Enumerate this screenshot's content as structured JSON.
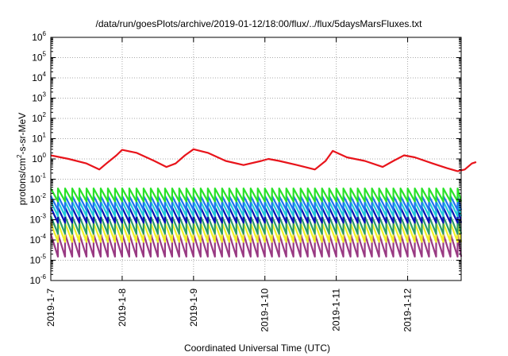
{
  "chart_data": {
    "type": "line",
    "title": "/data/run/goesPlots/archive/2019-01-12/18:00/flux/../flux/5daysMarsFluxes.txt",
    "xlabel": "Coordinated Universal Time (UTC)",
    "ylabel": {
      "prefix": "protons/cm",
      "sup": "2",
      "suffix": "-s-sr-MeV"
    },
    "yscale": "log",
    "ylim_exp": [
      -6,
      6
    ],
    "y_ticks": [
      {
        "base": "10",
        "exp": "-6"
      },
      {
        "base": "10",
        "exp": "-5"
      },
      {
        "base": "10",
        "exp": "-4"
      },
      {
        "base": "10",
        "exp": "-3"
      },
      {
        "base": "10",
        "exp": "-2"
      },
      {
        "base": "10",
        "exp": "-1"
      },
      {
        "base": "10",
        "exp": "0"
      },
      {
        "base": "10",
        "exp": "1"
      },
      {
        "base": "10",
        "exp": "2"
      },
      {
        "base": "10",
        "exp": "3"
      },
      {
        "base": "10",
        "exp": "4"
      },
      {
        "base": "10",
        "exp": "5"
      },
      {
        "base": "10",
        "exp": "6"
      }
    ],
    "x_range_days": [
      "2019-01-07",
      "2019-01-12 18:00"
    ],
    "x_ticks": [
      "2019-1-7",
      "2019-1-8",
      "2019-1-9",
      "2019-1-10",
      "2019-1-11",
      "2019-1-12"
    ],
    "grid": true,
    "legend": "none",
    "series": [
      {
        "color": "#e8141b",
        "kind": "smooth",
        "points": [
          [
            0.0,
            1.5
          ],
          [
            0.25,
            1.0
          ],
          [
            0.5,
            0.6
          ],
          [
            0.68,
            0.3
          ],
          [
            0.78,
            0.6
          ],
          [
            0.92,
            1.5
          ],
          [
            1.0,
            2.8
          ],
          [
            1.2,
            2.0
          ],
          [
            1.45,
            0.8
          ],
          [
            1.62,
            0.4
          ],
          [
            1.75,
            0.6
          ],
          [
            1.88,
            1.5
          ],
          [
            2.0,
            3.0
          ],
          [
            2.2,
            2.0
          ],
          [
            2.45,
            0.8
          ],
          [
            2.7,
            0.5
          ],
          [
            2.95,
            0.8
          ],
          [
            3.05,
            1.0
          ],
          [
            3.2,
            0.8
          ],
          [
            3.45,
            0.5
          ],
          [
            3.7,
            0.3
          ],
          [
            3.85,
            0.8
          ],
          [
            3.95,
            2.5
          ],
          [
            4.15,
            1.2
          ],
          [
            4.4,
            0.8
          ],
          [
            4.65,
            0.4
          ],
          [
            4.8,
            0.8
          ],
          [
            4.95,
            1.5
          ],
          [
            5.1,
            1.2
          ],
          [
            5.35,
            0.6
          ],
          [
            5.55,
            0.35
          ],
          [
            5.7,
            0.25
          ],
          [
            5.8,
            0.3
          ],
          [
            5.9,
            0.6
          ],
          [
            5.96,
            0.7
          ]
        ]
      },
      {
        "color": "#29e229",
        "kind": "sawtooth",
        "high": 0.035,
        "low": 0.008,
        "period": 0.1
      },
      {
        "color": "#1f72f0",
        "kind": "sawtooth",
        "high": 0.015,
        "low": 0.003,
        "period": 0.1
      },
      {
        "color": "#22ccd8",
        "kind": "sawtooth",
        "high": 0.008,
        "low": 0.0015,
        "period": 0.1
      },
      {
        "color": "#0a12b5",
        "kind": "sawtooth",
        "high": 0.004,
        "low": 0.0007,
        "period": 0.1
      },
      {
        "color": "#2a9c68",
        "kind": "sawtooth",
        "high": 0.0015,
        "low": 0.0002,
        "period": 0.1
      },
      {
        "color": "#f0f028",
        "kind": "sawtooth",
        "high": 0.0007,
        "low": 8e-05,
        "period": 0.1
      },
      {
        "color": "#993a83",
        "kind": "sawtooth",
        "high": 0.0002,
        "low": 1.5e-05,
        "period": 0.1
      }
    ]
  }
}
